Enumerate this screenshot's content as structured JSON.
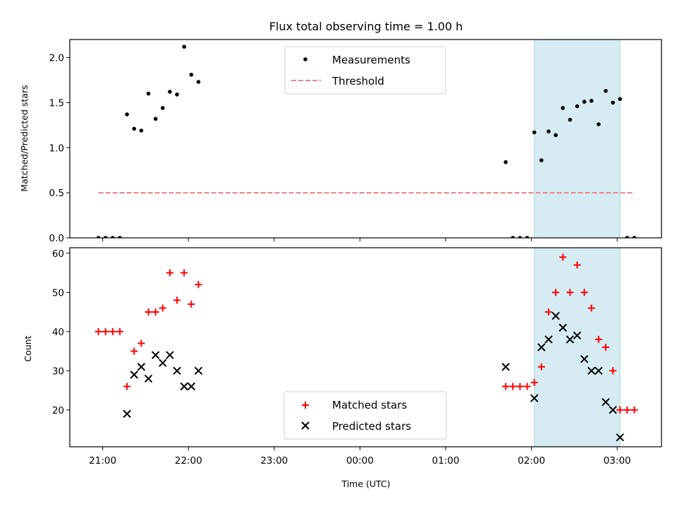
{
  "colors": {
    "measurement": "#000000",
    "threshold": "#f08080",
    "matched": "#ff0000",
    "predicted": "#000000",
    "shade": "#add8e6"
  },
  "chart_data": [
    {
      "type": "scatter",
      "title": "Flux total observing time = 1.00 h",
      "xlabel": "",
      "ylabel": "Matched/Predicted stars",
      "ylim": [
        0,
        2.2
      ],
      "yticks": [
        "0.0",
        "0.5",
        "1.0",
        "1.5",
        "2.0"
      ],
      "ytick_values": [
        0,
        0.5,
        1.0,
        1.5,
        2.0
      ],
      "shaded_interval": [
        "02:02",
        "03:02"
      ],
      "legend_position": "upper center",
      "series": [
        {
          "name": "Measurements",
          "kind": "points",
          "points": [
            [
              "20:57",
              0.0
            ],
            [
              "21:02",
              0.0
            ],
            [
              "21:07",
              0.0
            ],
            [
              "21:12",
              0.0
            ],
            [
              "21:17",
              1.37
            ],
            [
              "21:22",
              1.21
            ],
            [
              "21:27",
              1.19
            ],
            [
              "21:32",
              1.6
            ],
            [
              "21:37",
              1.32
            ],
            [
              "21:42",
              1.44
            ],
            [
              "21:47",
              1.62
            ],
            [
              "21:52",
              1.59
            ],
            [
              "21:57",
              2.12
            ],
            [
              "22:02",
              1.81
            ],
            [
              "22:07",
              1.73
            ],
            [
              "01:42",
              0.84
            ],
            [
              "01:47",
              0.0
            ],
            [
              "01:52",
              0.0
            ],
            [
              "01:57",
              0.0
            ],
            [
              "02:02",
              1.17
            ],
            [
              "02:07",
              0.86
            ],
            [
              "02:12",
              1.18
            ],
            [
              "02:17",
              1.14
            ],
            [
              "02:22",
              1.44
            ],
            [
              "02:27",
              1.31
            ],
            [
              "02:32",
              1.46
            ],
            [
              "02:37",
              1.51
            ],
            [
              "02:42",
              1.52
            ],
            [
              "02:47",
              1.26
            ],
            [
              "02:52",
              1.63
            ],
            [
              "02:57",
              1.5
            ],
            [
              "03:02",
              1.54
            ],
            [
              "03:07",
              0.0
            ],
            [
              "03:12",
              0.0
            ]
          ]
        },
        {
          "name": "Threshold",
          "kind": "dashed-line",
          "points": [
            [
              "20:57",
              0.5
            ],
            [
              "03:12",
              0.5
            ]
          ]
        }
      ]
    },
    {
      "type": "scatter",
      "title": "",
      "xlabel": "Time (UTC)",
      "ylabel": "Count",
      "ylim": [
        10.6,
        61.4
      ],
      "yticks": [
        "20",
        "30",
        "40",
        "50",
        "60"
      ],
      "ytick_values": [
        20,
        30,
        40,
        50,
        60
      ],
      "xticks": [
        "21:00",
        "22:00",
        "23:00",
        "00:00",
        "01:00",
        "02:00",
        "03:00"
      ],
      "xtick_times": [
        "21:00",
        "22:00",
        "23:00",
        "00:00",
        "01:00",
        "02:00",
        "03:00"
      ],
      "xlim": [
        "20:37",
        "03:31"
      ],
      "shaded_interval": [
        "02:02",
        "03:02"
      ],
      "legend_position": "lower center",
      "series": [
        {
          "name": "Matched stars",
          "kind": "plus",
          "points": [
            [
              "20:57",
              40
            ],
            [
              "21:02",
              40
            ],
            [
              "21:07",
              40
            ],
            [
              "21:12",
              40
            ],
            [
              "21:17",
              26
            ],
            [
              "21:22",
              35
            ],
            [
              "21:27",
              37
            ],
            [
              "21:32",
              45
            ],
            [
              "21:37",
              45
            ],
            [
              "21:42",
              46
            ],
            [
              "21:47",
              55
            ],
            [
              "21:52",
              48
            ],
            [
              "21:57",
              55
            ],
            [
              "22:02",
              47
            ],
            [
              "22:07",
              52
            ],
            [
              "01:42",
              26
            ],
            [
              "01:47",
              26
            ],
            [
              "01:52",
              26
            ],
            [
              "01:57",
              26
            ],
            [
              "02:02",
              27
            ],
            [
              "02:07",
              31
            ],
            [
              "02:12",
              45
            ],
            [
              "02:17",
              50
            ],
            [
              "02:22",
              59
            ],
            [
              "02:27",
              50
            ],
            [
              "02:32",
              57
            ],
            [
              "02:37",
              50
            ],
            [
              "02:42",
              46
            ],
            [
              "02:47",
              38
            ],
            [
              "02:52",
              36
            ],
            [
              "02:57",
              30
            ],
            [
              "03:02",
              20
            ],
            [
              "03:07",
              20
            ],
            [
              "03:12",
              20
            ]
          ]
        },
        {
          "name": "Predicted stars",
          "kind": "cross",
          "points": [
            [
              "21:17",
              19
            ],
            [
              "21:22",
              29
            ],
            [
              "21:27",
              31
            ],
            [
              "21:32",
              28
            ],
            [
              "21:37",
              34
            ],
            [
              "21:42",
              32
            ],
            [
              "21:47",
              34
            ],
            [
              "21:52",
              30
            ],
            [
              "21:57",
              26
            ],
            [
              "22:02",
              26
            ],
            [
              "22:07",
              30
            ],
            [
              "01:42",
              31
            ],
            [
              "02:02",
              23
            ],
            [
              "02:07",
              36
            ],
            [
              "02:12",
              38
            ],
            [
              "02:17",
              44
            ],
            [
              "02:22",
              41
            ],
            [
              "02:27",
              38
            ],
            [
              "02:32",
              39
            ],
            [
              "02:37",
              33
            ],
            [
              "02:42",
              30
            ],
            [
              "02:47",
              30
            ],
            [
              "02:52",
              22
            ],
            [
              "02:57",
              20
            ],
            [
              "03:02",
              13
            ]
          ]
        }
      ]
    }
  ]
}
